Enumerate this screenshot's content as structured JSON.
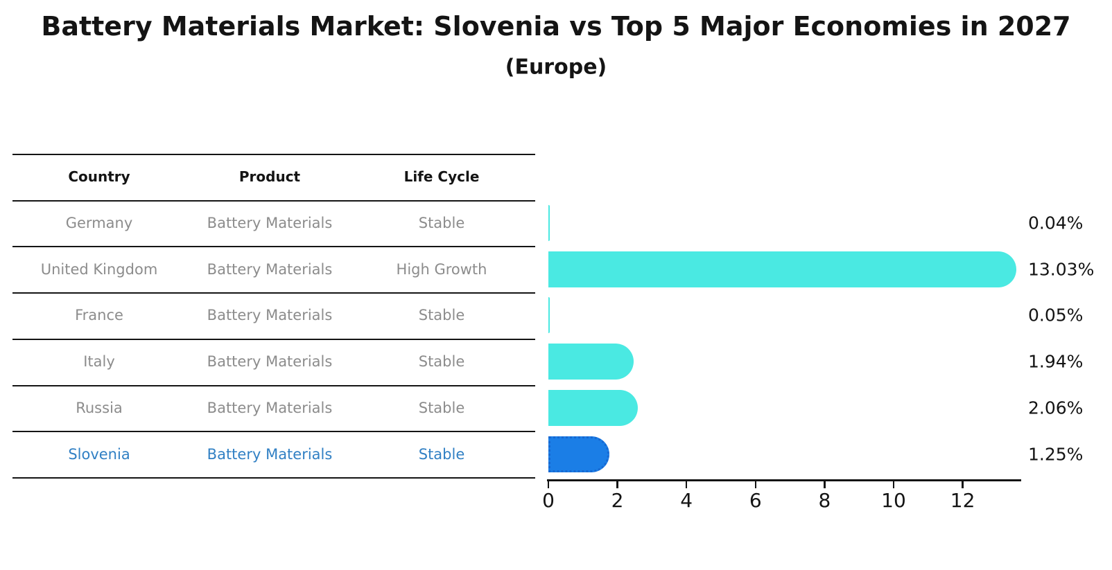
{
  "title": "Battery Materials Market: Slovenia vs Top 5 Major Economies in 2027",
  "subtitle": "(Europe)",
  "table": {
    "headers": [
      "Country",
      "Product",
      "Life Cycle"
    ],
    "rows": [
      {
        "country": "Germany",
        "product": "Battery Materials",
        "life_cycle": "Stable",
        "highlighted": false
      },
      {
        "country": "United Kingdom",
        "product": "Battery Materials",
        "life_cycle": "High Growth",
        "highlighted": false
      },
      {
        "country": "France",
        "product": "Battery Materials",
        "life_cycle": "Stable",
        "highlighted": false
      },
      {
        "country": "Italy",
        "product": "Battery Materials",
        "life_cycle": "Stable",
        "highlighted": false
      },
      {
        "country": "Russia",
        "product": "Battery Materials",
        "life_cycle": "Stable",
        "highlighted": false
      },
      {
        "country": "Slovenia",
        "product": "Battery Materials",
        "life_cycle": "Stable",
        "highlighted": true
      }
    ]
  },
  "chart_data": {
    "type": "bar",
    "orientation": "horizontal",
    "title": "Battery Materials Market: Slovenia vs Top 5 Major Economies in 2027 (Europe)",
    "categories": [
      "Germany",
      "United Kingdom",
      "France",
      "Italy",
      "Russia",
      "Slovenia"
    ],
    "values": [
      0.04,
      13.03,
      0.05,
      1.94,
      2.06,
      1.25
    ],
    "value_labels": [
      "0.04%",
      "13.03%",
      "0.05%",
      "1.94%",
      "2.06%",
      "1.25%"
    ],
    "x_ticks": [
      0,
      2,
      4,
      6,
      8,
      10,
      12
    ],
    "xlim": [
      0,
      13.7
    ],
    "xlabel": "",
    "ylabel": "",
    "grid": false,
    "legend": false,
    "highlight_index": 5,
    "unit": "percent"
  },
  "colors": {
    "bar": "#4ae9e2",
    "highlight_bar": "#1b7ee6",
    "highlight_bar_border": "#1668d2",
    "highlight_text": "#3180c4",
    "table_text": "#8c8c8c",
    "heading_text": "#141414",
    "axis_line": "#141414"
  }
}
